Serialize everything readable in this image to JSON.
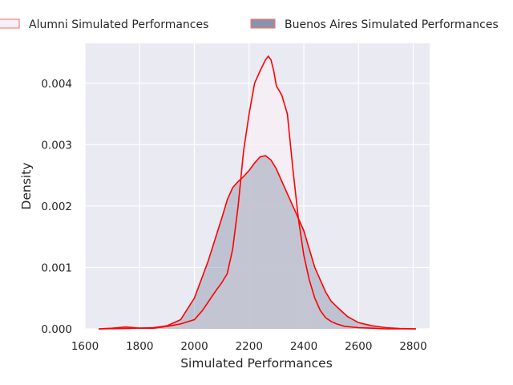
{
  "chart_data": {
    "type": "area",
    "title": "",
    "xlabel": "Simulated Performances",
    "ylabel": "Density",
    "xlim": [
      1600,
      2860
    ],
    "ylim": [
      0,
      0.00465
    ],
    "xticks": [
      1600,
      1800,
      2000,
      2200,
      2400,
      2600,
      2800
    ],
    "yticks": [
      0,
      0.001,
      0.002,
      0.003,
      0.004
    ],
    "ytick_labels": [
      "0.000",
      "0.001",
      "0.002",
      "0.003",
      "0.004"
    ],
    "grid": true,
    "legend_position": "top",
    "series": [
      {
        "name": "Alumni Simulated Performances",
        "fill": "#f7eff5",
        "line": "#ff0000",
        "x": [
          1650,
          1700,
          1750,
          1780,
          1800,
          1850,
          1900,
          1950,
          2000,
          2030,
          2060,
          2080,
          2100,
          2120,
          2140,
          2160,
          2180,
          2200,
          2220,
          2240,
          2260,
          2270,
          2280,
          2290,
          2300,
          2310,
          2320,
          2340,
          2360,
          2380,
          2400,
          2420,
          2440,
          2460,
          2480,
          2500,
          2520,
          2550,
          2600,
          2650,
          2700,
          2750,
          2810
        ],
        "y": [
          0,
          1e-05,
          3e-05,
          2e-05,
          1e-05,
          1e-05,
          4e-05,
          8e-05,
          0.00015,
          0.0003,
          0.0005,
          0.00063,
          0.00075,
          0.0009,
          0.0013,
          0.002,
          0.0029,
          0.0035,
          0.004,
          0.0042,
          0.00438,
          0.00444,
          0.00438,
          0.0042,
          0.00395,
          0.00388,
          0.0038,
          0.0035,
          0.0026,
          0.0018,
          0.0012,
          0.0008,
          0.0005,
          0.0003,
          0.00018,
          0.00012,
          8e-05,
          4e-05,
          2e-05,
          1e-05,
          0,
          0,
          0
        ]
      },
      {
        "name": "Buenos Aires Simulated Performances",
        "fill": "#8a93a9",
        "line": "#ff0000",
        "x": [
          1650,
          1750,
          1850,
          1900,
          1950,
          2000,
          2050,
          2100,
          2120,
          2140,
          2160,
          2180,
          2200,
          2220,
          2240,
          2260,
          2280,
          2300,
          2320,
          2340,
          2360,
          2380,
          2400,
          2420,
          2440,
          2460,
          2480,
          2500,
          2530,
          2560,
          2600,
          2650,
          2700,
          2750,
          2810
        ],
        "y": [
          0,
          5e-06,
          2e-05,
          5e-05,
          0.00015,
          0.0005,
          0.0011,
          0.0018,
          0.0021,
          0.0023,
          0.0024,
          0.00248,
          0.00258,
          0.0027,
          0.0028,
          0.00282,
          0.00275,
          0.0026,
          0.0024,
          0.0022,
          0.002,
          0.0018,
          0.0016,
          0.0013,
          0.001,
          0.0008,
          0.0006,
          0.00045,
          0.00032,
          0.0002,
          0.0001,
          5e-05,
          2e-05,
          5e-06,
          0
        ]
      }
    ]
  }
}
